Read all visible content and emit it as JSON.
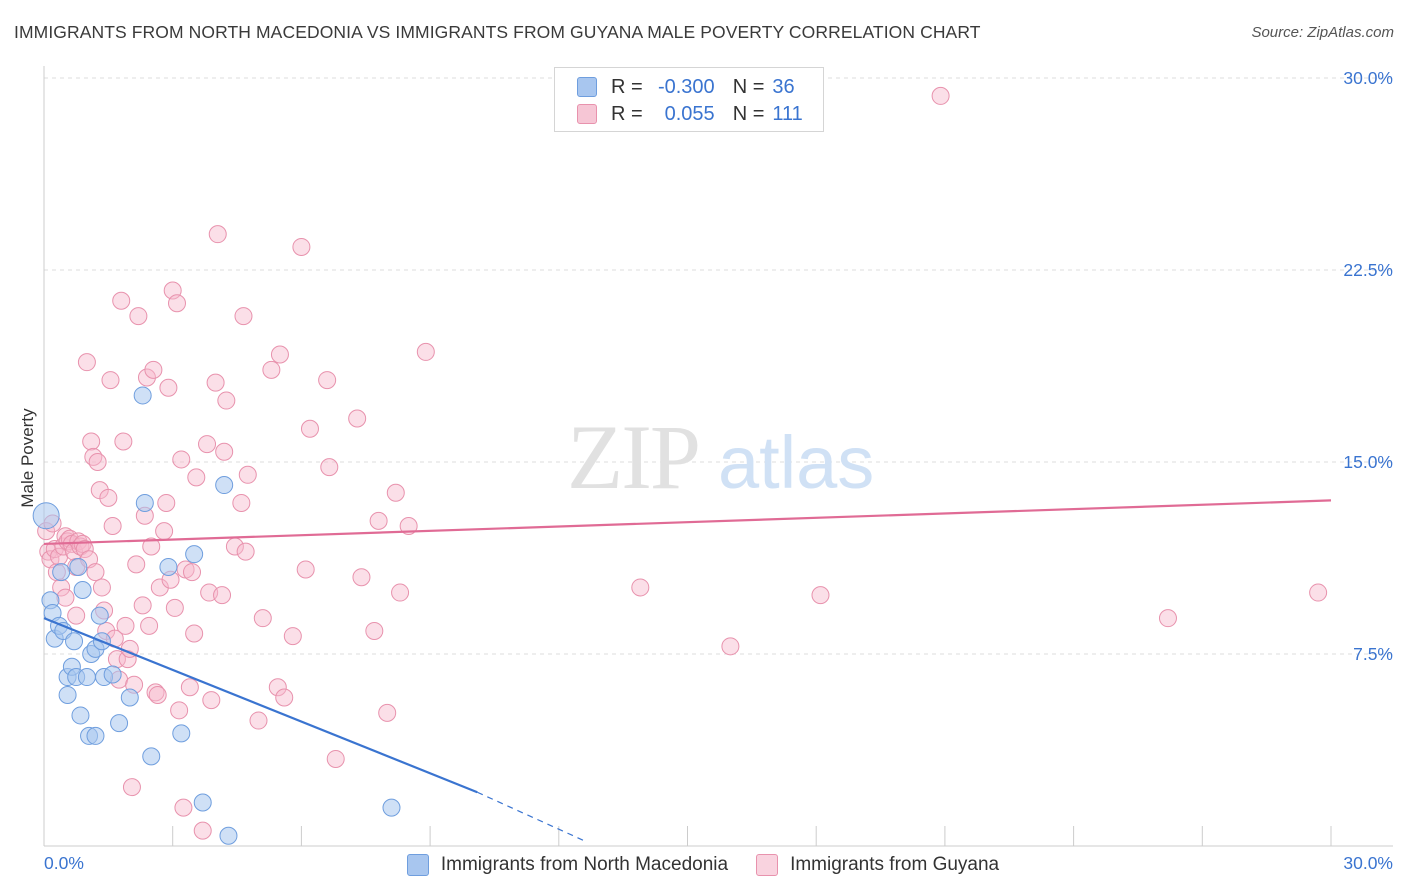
{
  "title": "IMMIGRANTS FROM NORTH MACEDONIA VS IMMIGRANTS FROM GUYANA MALE POVERTY CORRELATION CHART",
  "source": "Source: ZipAtlas.com",
  "watermark": {
    "zip": "ZIP",
    "atlas": "atlas"
  },
  "legend": {
    "r_label": "R =",
    "n_label": "N =",
    "rows": [
      {
        "series": "Immigrants from North Macedonia",
        "r": "-0.300",
        "n": "36",
        "color": "#a8c6ef"
      },
      {
        "series": "Immigrants from Guyana",
        "r": "0.055",
        "n": "111",
        "color": "#f6b8cb"
      }
    ]
  },
  "colors": {
    "blue_fill": "#a8c6ef",
    "blue_stroke": "#6f9ede",
    "blue_line": "#3a74d0",
    "pink_fill": "#f6b8cb",
    "pink_stroke": "#e892ad",
    "pink_line": "#e06b95",
    "axis_text": "#3a74d0",
    "grid": "#dddddd"
  },
  "chart_data": {
    "type": "scatter",
    "title": "IMMIGRANTS FROM NORTH MACEDONIA VS IMMIGRANTS FROM GUYANA MALE POVERTY CORRELATION CHART",
    "xlabel": "",
    "ylabel": "Male Poverty",
    "xlim": [
      0,
      30
    ],
    "ylim": [
      0,
      30
    ],
    "x_tick_labels": [
      "0.0%",
      "30.0%"
    ],
    "y_ticks": [
      7.5,
      15.0,
      22.5,
      30.0
    ],
    "y_tick_labels": [
      "7.5%",
      "15.0%",
      "22.5%",
      "30.0%"
    ],
    "grid": true,
    "legend_position": "top-center",
    "series": [
      {
        "name": "Immigrants from North Macedonia",
        "color": "#a8c6ef",
        "points": [
          [
            0.05,
            12.9
          ],
          [
            0.15,
            9.6
          ],
          [
            0.2,
            9.1
          ],
          [
            0.25,
            8.1
          ],
          [
            0.35,
            8.6
          ],
          [
            0.4,
            10.7
          ],
          [
            0.45,
            8.4
          ],
          [
            0.55,
            6.6
          ],
          [
            0.55,
            5.9
          ],
          [
            0.65,
            7.0
          ],
          [
            0.7,
            8.0
          ],
          [
            0.75,
            6.6
          ],
          [
            0.8,
            10.9
          ],
          [
            0.85,
            5.1
          ],
          [
            0.9,
            10.0
          ],
          [
            1.0,
            6.6
          ],
          [
            1.05,
            4.3
          ],
          [
            1.1,
            7.5
          ],
          [
            1.2,
            4.3
          ],
          [
            1.2,
            7.7
          ],
          [
            1.3,
            9.0
          ],
          [
            1.35,
            8.0
          ],
          [
            1.4,
            6.6
          ],
          [
            1.6,
            6.7
          ],
          [
            1.75,
            4.8
          ],
          [
            2.0,
            5.8
          ],
          [
            2.3,
            17.6
          ],
          [
            2.35,
            13.4
          ],
          [
            2.5,
            3.5
          ],
          [
            2.9,
            10.9
          ],
          [
            3.2,
            4.4
          ],
          [
            3.5,
            11.4
          ],
          [
            3.7,
            1.7
          ],
          [
            4.2,
            14.1
          ],
          [
            4.3,
            0.4
          ],
          [
            8.1,
            1.5
          ]
        ],
        "trend": {
          "x_start": 0.0,
          "y_start": 8.9,
          "x_solid_end": 10.1,
          "y_solid_end": 2.1,
          "x_dash_end": 12.6,
          "y_dash_end": 0.2
        }
      },
      {
        "name": "Immigrants from Guyana",
        "color": "#f6b8cb",
        "points": [
          [
            0.05,
            12.3
          ],
          [
            0.1,
            11.5
          ],
          [
            0.15,
            11.2
          ],
          [
            0.2,
            12.6
          ],
          [
            0.25,
            11.6
          ],
          [
            0.3,
            10.7
          ],
          [
            0.35,
            11.3
          ],
          [
            0.4,
            10.1
          ],
          [
            0.45,
            11.7
          ],
          [
            0.5,
            12.1
          ],
          [
            0.5,
            9.7
          ],
          [
            0.55,
            11.9
          ],
          [
            0.6,
            12.0
          ],
          [
            0.65,
            11.8
          ],
          [
            0.7,
            11.5
          ],
          [
            0.75,
            10.9
          ],
          [
            0.75,
            9.0
          ],
          [
            0.8,
            11.9
          ],
          [
            0.85,
            11.7
          ],
          [
            0.9,
            11.8
          ],
          [
            0.95,
            11.6
          ],
          [
            1.0,
            18.9
          ],
          [
            1.05,
            11.2
          ],
          [
            1.1,
            15.8
          ],
          [
            1.15,
            15.2
          ],
          [
            1.2,
            10.7
          ],
          [
            1.25,
            15.0
          ],
          [
            1.3,
            13.9
          ],
          [
            1.35,
            10.1
          ],
          [
            1.4,
            9.2
          ],
          [
            1.45,
            8.4
          ],
          [
            1.5,
            13.6
          ],
          [
            1.55,
            18.2
          ],
          [
            1.6,
            12.5
          ],
          [
            1.65,
            8.1
          ],
          [
            1.7,
            7.3
          ],
          [
            1.75,
            6.5
          ],
          [
            1.8,
            21.3
          ],
          [
            1.85,
            15.8
          ],
          [
            1.9,
            8.6
          ],
          [
            1.95,
            7.3
          ],
          [
            2.0,
            7.7
          ],
          [
            2.05,
            2.3
          ],
          [
            2.1,
            6.3
          ],
          [
            2.15,
            11.0
          ],
          [
            2.2,
            20.7
          ],
          [
            2.3,
            9.4
          ],
          [
            2.35,
            12.9
          ],
          [
            2.4,
            18.3
          ],
          [
            2.45,
            8.6
          ],
          [
            2.5,
            11.7
          ],
          [
            2.55,
            18.6
          ],
          [
            2.6,
            6.0
          ],
          [
            2.65,
            5.9
          ],
          [
            2.7,
            10.1
          ],
          [
            2.8,
            12.3
          ],
          [
            2.85,
            13.4
          ],
          [
            2.9,
            17.9
          ],
          [
            2.95,
            10.4
          ],
          [
            3.0,
            21.7
          ],
          [
            3.05,
            9.3
          ],
          [
            3.1,
            21.2
          ],
          [
            3.15,
            5.3
          ],
          [
            3.2,
            15.1
          ],
          [
            3.25,
            1.5
          ],
          [
            3.3,
            10.8
          ],
          [
            3.4,
            6.2
          ],
          [
            3.45,
            10.7
          ],
          [
            3.5,
            8.3
          ],
          [
            3.55,
            14.4
          ],
          [
            3.7,
            0.6
          ],
          [
            3.8,
            15.7
          ],
          [
            3.85,
            9.9
          ],
          [
            3.9,
            5.7
          ],
          [
            4.0,
            18.1
          ],
          [
            4.05,
            23.9
          ],
          [
            4.15,
            9.8
          ],
          [
            4.2,
            15.4
          ],
          [
            4.25,
            17.4
          ],
          [
            4.45,
            11.7
          ],
          [
            4.6,
            13.4
          ],
          [
            4.65,
            20.7
          ],
          [
            4.7,
            11.5
          ],
          [
            4.75,
            14.5
          ],
          [
            5.0,
            4.9
          ],
          [
            5.1,
            8.9
          ],
          [
            5.3,
            18.6
          ],
          [
            5.45,
            6.2
          ],
          [
            5.5,
            19.2
          ],
          [
            5.6,
            5.8
          ],
          [
            5.8,
            8.2
          ],
          [
            6.0,
            23.4
          ],
          [
            6.1,
            10.8
          ],
          [
            6.2,
            16.3
          ],
          [
            6.6,
            18.2
          ],
          [
            6.65,
            14.8
          ],
          [
            6.8,
            3.4
          ],
          [
            7.3,
            16.7
          ],
          [
            7.4,
            10.5
          ],
          [
            7.7,
            8.4
          ],
          [
            7.8,
            12.7
          ],
          [
            8.0,
            5.2
          ],
          [
            8.2,
            13.8
          ],
          [
            8.3,
            9.9
          ],
          [
            8.5,
            12.5
          ],
          [
            8.9,
            19.3
          ],
          [
            13.9,
            10.1
          ],
          [
            16.0,
            7.8
          ],
          [
            18.1,
            9.8
          ],
          [
            20.9,
            29.3
          ],
          [
            26.2,
            8.9
          ],
          [
            29.7,
            9.9
          ]
        ],
        "trend": {
          "x_start": 0.0,
          "y_start": 11.8,
          "x_end": 30.0,
          "y_end": 13.5
        }
      }
    ]
  }
}
